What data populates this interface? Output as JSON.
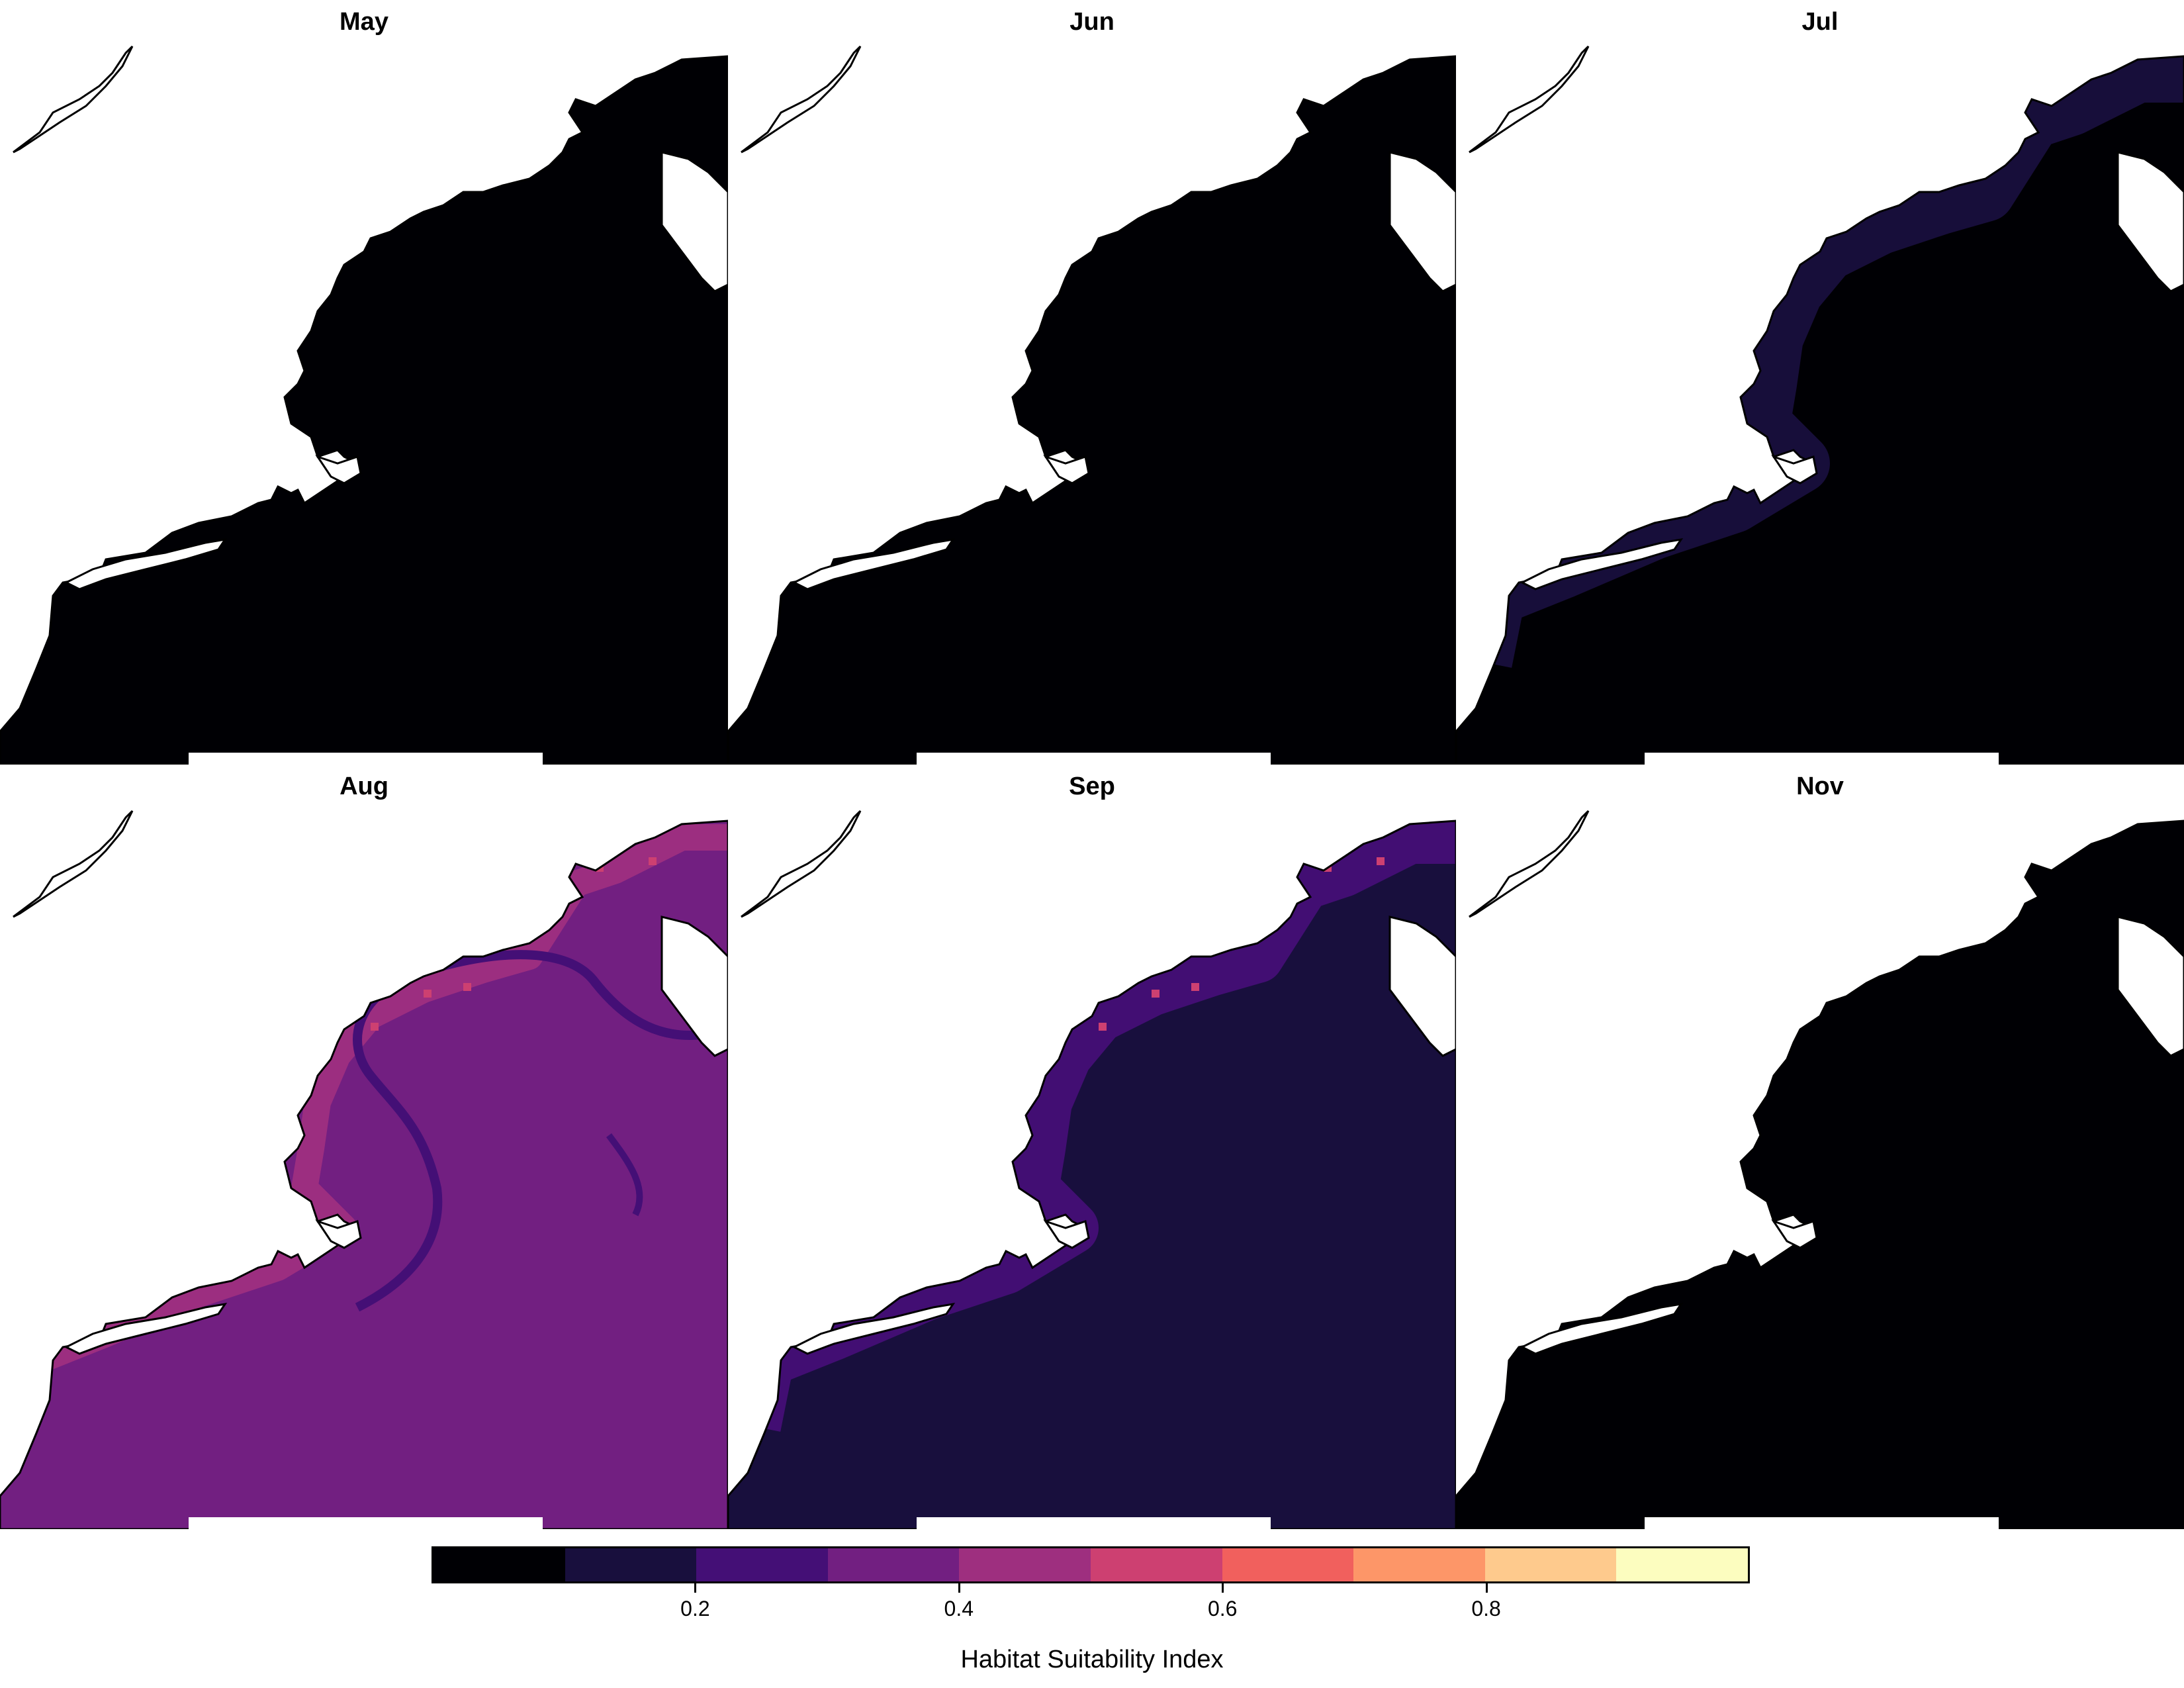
{
  "panels": [
    {
      "title": "May",
      "fill": "#000004",
      "features": []
    },
    {
      "title": "Jun",
      "fill": "#000004",
      "features": []
    },
    {
      "title": "Jul",
      "fill": "#000004",
      "features": [
        "coastal-band"
      ]
    },
    {
      "title": "Aug",
      "fill": "#721F81",
      "features": [
        "coastal-band-light",
        "front-line",
        "hotspots"
      ]
    },
    {
      "title": "Sep",
      "fill": "#180F3D",
      "features": [
        "coastal-band-purple",
        "hotspots"
      ]
    },
    {
      "title": "Nov",
      "fill": "#000004",
      "features": []
    }
  ],
  "legend": {
    "title": "Habitat Suitability Index",
    "bins": [
      "#000004",
      "#180F3D",
      "#440F76",
      "#721F81",
      "#9E2F7F",
      "#CD4071",
      "#F1605D",
      "#FD9668",
      "#FECA8D",
      "#FCFDBF"
    ],
    "ticks": [
      "0.2",
      "0.4",
      "0.6",
      "0.8"
    ],
    "tick_values": [
      0.2,
      0.4,
      0.6,
      0.8
    ],
    "range": [
      0,
      1
    ]
  }
}
